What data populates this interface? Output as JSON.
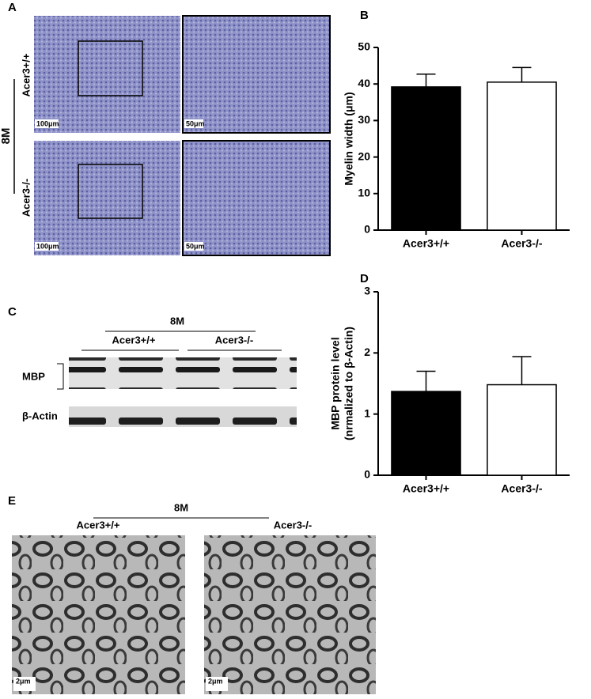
{
  "panel_a": {
    "label": "A",
    "group": "8M",
    "row_labels": [
      "Acer3+/+",
      "Acer3-/-"
    ],
    "scale_bars": [
      "100μm",
      "50μm",
      "100μm",
      "50μm"
    ]
  },
  "panel_c": {
    "label": "C",
    "group": "8M",
    "lane_groups": [
      "Acer3+/+",
      "Acer3-/-"
    ],
    "bands": [
      "MBP",
      "β-Actin"
    ]
  },
  "panel_e": {
    "label": "E",
    "group": "8M",
    "image_labels": [
      "Acer3+/+",
      "Acer3-/-"
    ],
    "scale_bars": [
      "2μm",
      "2μm"
    ]
  },
  "chart_data": [
    {
      "type": "bar",
      "panel": "B",
      "ylabel": [
        "Myelin width (μm)"
      ],
      "categories": [
        "Acer3+/+",
        "Acer3-/-"
      ],
      "values": [
        39.2,
        40.5
      ],
      "errors": [
        3.5,
        4.0
      ],
      "colors": [
        "#000000",
        "#ffffff"
      ],
      "ylim": [
        0,
        50
      ],
      "yticks": [
        0,
        10,
        20,
        30,
        40,
        50
      ]
    },
    {
      "type": "bar",
      "panel": "D",
      "ylabel": [
        "MBP protein level",
        "(nrmalized to β-Actin)"
      ],
      "categories": [
        "Acer3+/+",
        "Acer3-/-"
      ],
      "values": [
        1.37,
        1.48
      ],
      "errors": [
        0.33,
        0.46
      ],
      "colors": [
        "#000000",
        "#ffffff"
      ],
      "ylim": [
        0,
        3
      ],
      "yticks": [
        0,
        1,
        2,
        3
      ]
    }
  ]
}
